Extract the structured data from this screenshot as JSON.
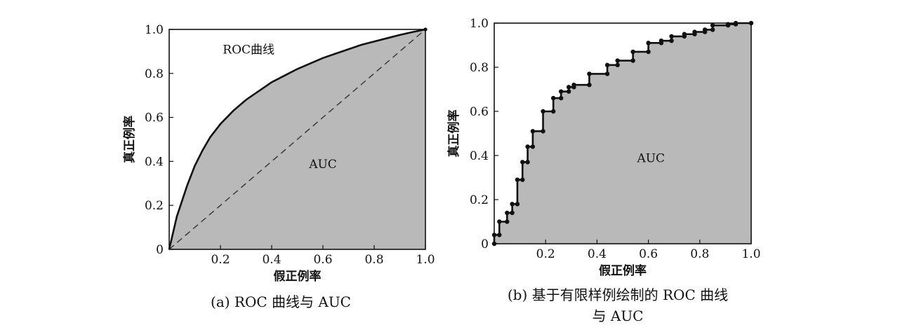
{
  "figure": {
    "caption_a": "(a) ROC 曲线与 AUC",
    "caption_b_line1": "(b) 基于有限样例绘制的 ROC 曲线",
    "caption_b_line2": "与 AUC",
    "fill_color": "#b9b9b9",
    "line_color": "#111111"
  },
  "chart_data": [
    {
      "type": "area",
      "xlabel": "假正例率",
      "ylabel": "真正例率",
      "xlim": [
        0,
        1
      ],
      "ylim": [
        0,
        1
      ],
      "x_ticks": [
        "0.2",
        "0.4",
        "0.6",
        "0.8",
        "1.0"
      ],
      "y_ticks": [
        "0",
        "0.2",
        "0.4",
        "0.6",
        "0.8",
        "1.0"
      ],
      "curve_label": "ROC曲线",
      "area_label": "AUC",
      "grid": false,
      "diagonal": {
        "style": "dashed",
        "from": [
          0,
          0
        ],
        "to": [
          1,
          1
        ]
      },
      "x": [
        0,
        0.01,
        0.02,
        0.03,
        0.05,
        0.07,
        0.1,
        0.13,
        0.16,
        0.2,
        0.25,
        0.3,
        0.35,
        0.4,
        0.45,
        0.5,
        0.55,
        0.6,
        0.65,
        0.7,
        0.75,
        0.8,
        0.85,
        0.9,
        0.95,
        1.0
      ],
      "y": [
        0,
        0.05,
        0.1,
        0.15,
        0.22,
        0.29,
        0.38,
        0.45,
        0.51,
        0.57,
        0.63,
        0.68,
        0.72,
        0.76,
        0.79,
        0.82,
        0.845,
        0.87,
        0.89,
        0.91,
        0.93,
        0.945,
        0.96,
        0.975,
        0.988,
        1.0
      ]
    },
    {
      "type": "line",
      "xlabel": "假正例率",
      "ylabel": "真正例率",
      "xlim": [
        0,
        1
      ],
      "ylim": [
        0,
        1
      ],
      "x_ticks": [
        "0.2",
        "0.4",
        "0.6",
        "0.8",
        "1.0"
      ],
      "y_ticks": [
        "0",
        "0.2",
        "0.4",
        "0.6",
        "0.8",
        "1.0"
      ],
      "area_label": "AUC",
      "grid": false,
      "x": [
        0,
        0,
        0.02,
        0.02,
        0.05,
        0.05,
        0.07,
        0.07,
        0.09,
        0.09,
        0.11,
        0.11,
        0.13,
        0.13,
        0.15,
        0.15,
        0.19,
        0.19,
        0.23,
        0.23,
        0.26,
        0.26,
        0.29,
        0.29,
        0.31,
        0.31,
        0.37,
        0.37,
        0.44,
        0.44,
        0.48,
        0.48,
        0.54,
        0.54,
        0.6,
        0.6,
        0.65,
        0.65,
        0.69,
        0.69,
        0.74,
        0.74,
        0.78,
        0.78,
        0.82,
        0.82,
        0.85,
        0.85,
        0.91,
        0.91,
        0.94,
        0.94,
        1.0
      ],
      "y": [
        0,
        0.04,
        0.04,
        0.1,
        0.1,
        0.14,
        0.14,
        0.18,
        0.18,
        0.29,
        0.29,
        0.37,
        0.37,
        0.44,
        0.44,
        0.51,
        0.51,
        0.6,
        0.6,
        0.66,
        0.66,
        0.69,
        0.69,
        0.71,
        0.71,
        0.72,
        0.72,
        0.77,
        0.77,
        0.81,
        0.81,
        0.83,
        0.83,
        0.87,
        0.87,
        0.91,
        0.91,
        0.92,
        0.92,
        0.94,
        0.94,
        0.95,
        0.95,
        0.96,
        0.96,
        0.97,
        0.97,
        0.99,
        0.99,
        0.995,
        0.995,
        1.0,
        1.0
      ]
    }
  ]
}
